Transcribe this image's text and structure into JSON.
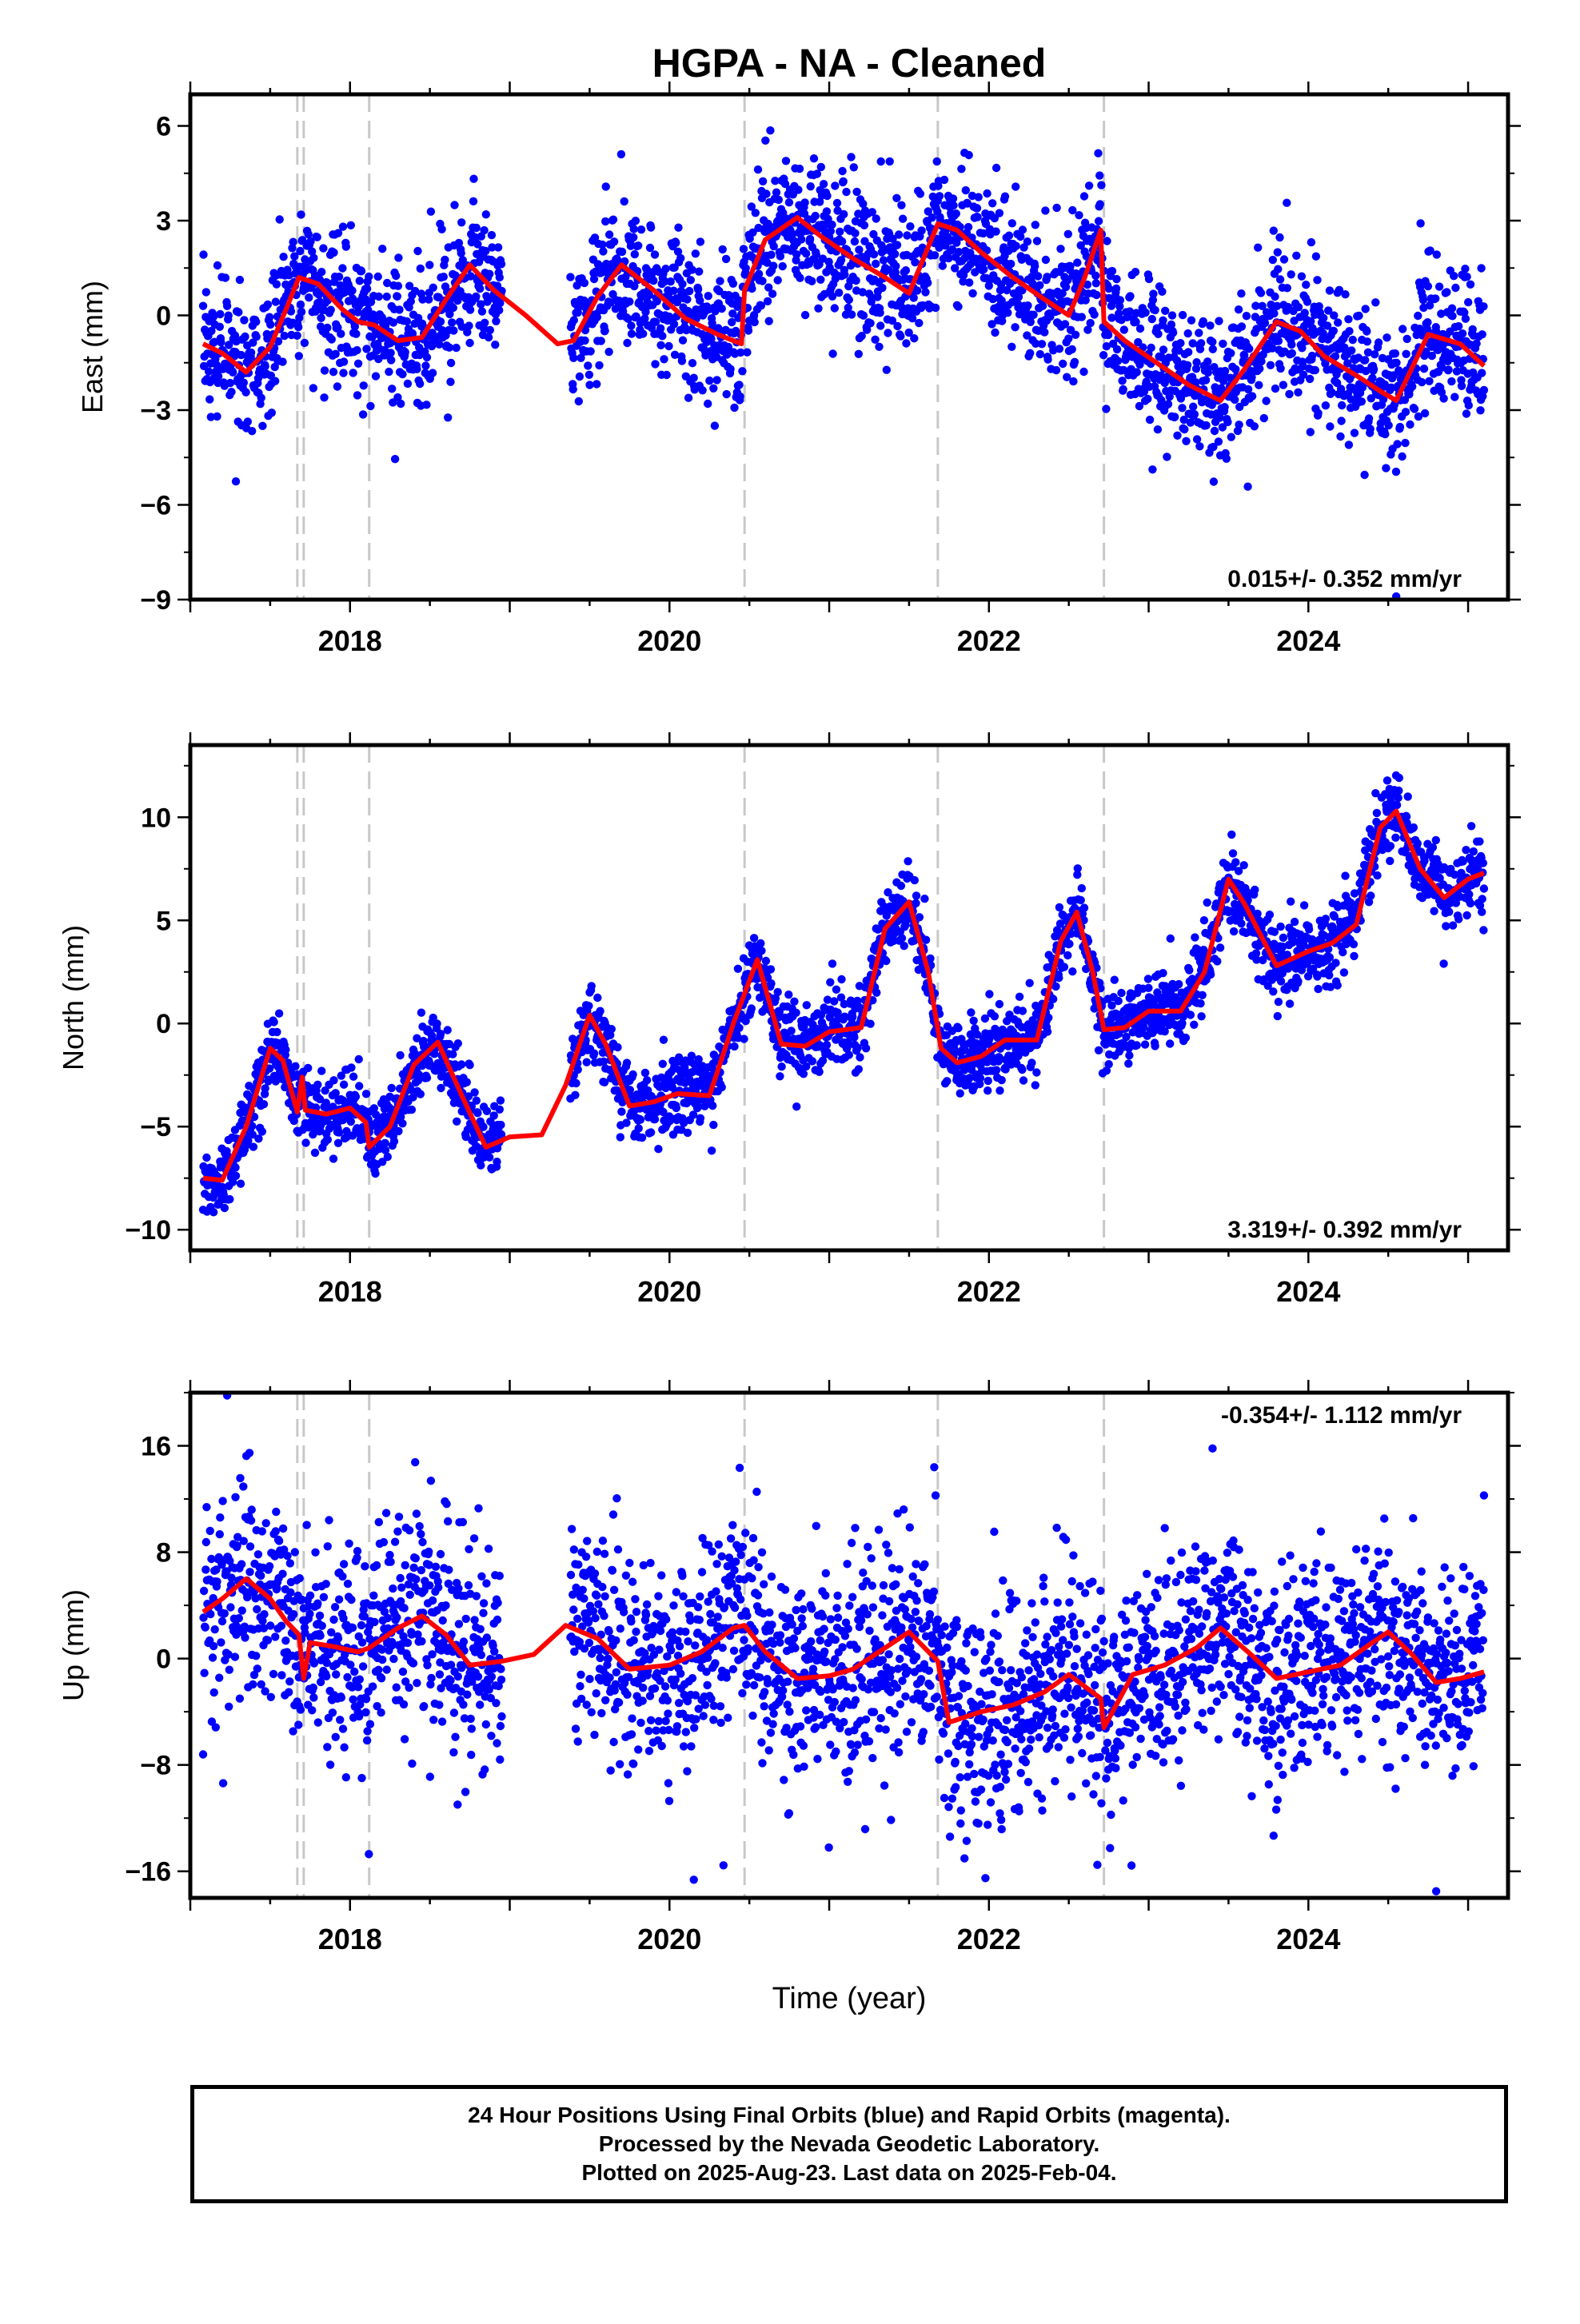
{
  "title": "HGPA  - NA - Cleaned",
  "x_axis_label": "Time (year)",
  "footer": {
    "line1": "24 Hour Positions Using Final Orbits (blue) and Rapid Orbits (magenta).",
    "line2": "Processed by the Nevada Geodetic Laboratory.",
    "line3": "Plotted on 2025-Aug-23. Last data on 2025-Feb-04."
  },
  "colors": {
    "points": "#0000ff",
    "model": "#ff0000",
    "offsets": "#c8c8c8",
    "frame": "#000000"
  },
  "chart_data": [
    {
      "type": "scatter",
      "panel": "east",
      "ylabel": "East (mm)",
      "xlim": [
        2017.0,
        2025.25
      ],
      "ylim": [
        -9,
        7
      ],
      "yticks": [
        6,
        3,
        0,
        -3,
        -6,
        -9
      ],
      "ytick_labels": [
        "6",
        "3",
        "0",
        "−3",
        "−6",
        "−9"
      ],
      "xticks": [
        2018,
        2020,
        2022,
        2024
      ],
      "xtick_labels": [
        "2018",
        "2020",
        "2022",
        "2024"
      ],
      "rate_label": "0.015+/- 0.352 mm/yr",
      "offset_lines": [
        2017.67,
        2017.71,
        2018.12,
        2020.47,
        2021.68,
        2022.72
      ],
      "model_x": [
        2017.08,
        2017.2,
        2017.35,
        2017.5,
        2017.6,
        2017.68,
        2017.8,
        2017.95,
        2018.05,
        2018.15,
        2018.3,
        2018.45,
        2018.6,
        2018.75,
        2018.9,
        2019.1,
        2019.3,
        2019.4,
        2019.55,
        2019.7,
        2019.9,
        2020.1,
        2020.3,
        2020.45,
        2020.47,
        2020.6,
        2020.8,
        2020.95,
        2021.15,
        2021.35,
        2021.5,
        2021.68,
        2021.8,
        2021.95,
        2022.15,
        2022.35,
        2022.5,
        2022.6,
        2022.7,
        2022.72,
        2022.85,
        2023.05,
        2023.25,
        2023.45,
        2023.6,
        2023.8,
        2023.95,
        2024.1,
        2024.3,
        2024.45,
        2024.55,
        2024.75,
        2024.95,
        2025.1
      ],
      "model_y": [
        -0.9,
        -1.2,
        -1.8,
        -1.0,
        0.2,
        1.2,
        1.0,
        0.2,
        -0.2,
        -0.3,
        -0.8,
        -0.7,
        0.5,
        1.6,
        0.8,
        0.0,
        -0.9,
        -0.8,
        0.6,
        1.6,
        0.8,
        -0.1,
        -0.6,
        -0.9,
        0.8,
        2.4,
        3.1,
        2.5,
        1.8,
        1.2,
        0.7,
        2.9,
        2.7,
        2.0,
        1.2,
        0.5,
        0.0,
        1.2,
        2.7,
        -0.2,
        -0.8,
        -1.5,
        -2.2,
        -2.7,
        -1.7,
        -0.2,
        -0.5,
        -1.3,
        -1.9,
        -2.4,
        -2.7,
        -0.6,
        -0.9,
        -1.6
      ],
      "series": [
        {
          "name": "Final Orbits",
          "segments": [
            [
              2017.08,
              2018.95
            ],
            [
              2019.38,
              2025.1
            ]
          ],
          "noise": 1.1,
          "outlier_rate": 0.01
        }
      ],
      "extra_points": [
        [
          2024.55,
          -8.9
        ]
      ]
    },
    {
      "type": "scatter",
      "panel": "north",
      "ylabel": "North (mm)",
      "xlim": [
        2017.0,
        2025.25
      ],
      "ylim": [
        -11,
        13.5
      ],
      "yticks": [
        10,
        5,
        0,
        -5,
        -10
      ],
      "ytick_labels": [
        "10",
        "5",
        "0",
        "−5",
        "−10"
      ],
      "xticks": [
        2018,
        2020,
        2022,
        2024
      ],
      "xtick_labels": [
        "2018",
        "2020",
        "2022",
        "2024"
      ],
      "rate_label": "3.319+/- 0.392 mm/yr",
      "offset_lines": [
        2017.67,
        2017.71,
        2018.12,
        2020.47,
        2021.68,
        2022.72
      ],
      "model_x": [
        2017.08,
        2017.2,
        2017.35,
        2017.5,
        2017.58,
        2017.67,
        2017.7,
        2017.72,
        2017.85,
        2018.0,
        2018.1,
        2018.12,
        2018.25,
        2018.4,
        2018.55,
        2018.7,
        2018.85,
        2019.0,
        2019.2,
        2019.35,
        2019.5,
        2019.6,
        2019.75,
        2019.9,
        2020.05,
        2020.25,
        2020.4,
        2020.55,
        2020.7,
        2020.85,
        2021.0,
        2021.2,
        2021.35,
        2021.5,
        2021.62,
        2021.7,
        2021.8,
        2021.95,
        2022.1,
        2022.3,
        2022.45,
        2022.55,
        2022.65,
        2022.72,
        2022.85,
        2023.0,
        2023.2,
        2023.35,
        2023.5,
        2023.6,
        2023.8,
        2024.0,
        2024.15,
        2024.3,
        2024.45,
        2024.55,
        2024.7,
        2024.85,
        2025.0,
        2025.1
      ],
      "model_y": [
        -7.5,
        -7.6,
        -5.0,
        -1.2,
        -1.8,
        -4.3,
        -2.6,
        -4.2,
        -4.4,
        -4.1,
        -4.8,
        -6.0,
        -5.0,
        -2.0,
        -0.9,
        -3.5,
        -6.0,
        -5.5,
        -5.4,
        -3.0,
        0.4,
        -1.0,
        -4.0,
        -3.8,
        -3.4,
        -3.5,
        0.0,
        3.1,
        -1.0,
        -1.1,
        -0.4,
        -0.2,
        4.6,
        5.9,
        2.5,
        -1.2,
        -1.9,
        -1.6,
        -0.8,
        -0.8,
        4.0,
        5.4,
        2.5,
        -0.3,
        -0.2,
        0.6,
        0.6,
        2.5,
        7.0,
        5.8,
        2.8,
        3.5,
        3.9,
        4.8,
        9.5,
        10.3,
        7.5,
        6.1,
        7.0,
        7.3
      ],
      "series": [
        {
          "name": "Final Orbits",
          "segments": [
            [
              2017.08,
              2018.95
            ],
            [
              2019.38,
              2025.1
            ]
          ],
          "noise": 0.9,
          "outlier_rate": 0.01
        }
      ],
      "extra_points": []
    },
    {
      "type": "scatter",
      "panel": "up",
      "ylabel": "Up (mm)",
      "xlim": [
        2017.0,
        2025.25
      ],
      "ylim": [
        -18,
        20
      ],
      "yticks": [
        16,
        8,
        0,
        -8,
        -16
      ],
      "ytick_labels": [
        "16",
        "8",
        "0",
        "−8",
        "−16"
      ],
      "xticks": [
        2018,
        2020,
        2022,
        2024
      ],
      "xtick_labels": [
        "2018",
        "2020",
        "2022",
        "2024"
      ],
      "rate_label": "-0.354+/- 1.112 mm/yr",
      "offset_lines": [
        2017.67,
        2017.71,
        2018.12,
        2020.47,
        2021.68,
        2022.72
      ],
      "model_x": [
        2017.08,
        2017.2,
        2017.35,
        2017.5,
        2017.6,
        2017.68,
        2017.71,
        2017.75,
        2017.9,
        2018.05,
        2018.12,
        2018.3,
        2018.45,
        2018.6,
        2018.75,
        2018.95,
        2019.15,
        2019.35,
        2019.55,
        2019.75,
        2020.0,
        2020.2,
        2020.4,
        2020.47,
        2020.6,
        2020.8,
        2021.0,
        2021.15,
        2021.35,
        2021.5,
        2021.68,
        2021.75,
        2021.95,
        2022.15,
        2022.35,
        2022.5,
        2022.7,
        2022.72,
        2022.9,
        2023.1,
        2023.3,
        2023.45,
        2023.65,
        2023.8,
        2024.0,
        2024.2,
        2024.4,
        2024.5,
        2024.65,
        2024.8,
        2024.95,
        2025.1
      ],
      "model_y": [
        3.5,
        4.5,
        6.0,
        4.5,
        2.8,
        1.8,
        -1.5,
        1.2,
        0.9,
        0.5,
        0.8,
        2.3,
        3.2,
        1.8,
        -0.5,
        -0.2,
        0.3,
        2.5,
        1.5,
        -0.8,
        -0.5,
        0.5,
        2.3,
        2.5,
        0.5,
        -1.5,
        -1.3,
        -0.8,
        0.8,
        2.0,
        -0.2,
        -4.8,
        -4.0,
        -3.5,
        -2.5,
        -1.2,
        -3.0,
        -5.2,
        -1.2,
        -0.5,
        0.8,
        2.3,
        0.2,
        -1.5,
        -1.0,
        -0.5,
        1.2,
        2.0,
        0.3,
        -1.8,
        -1.5,
        -1.0
      ],
      "series": [
        {
          "name": "Final Orbits",
          "segments": [
            [
              2017.08,
              2018.95
            ],
            [
              2019.38,
              2025.1
            ]
          ],
          "noise": 3.8,
          "outlier_rate": 0.02
        }
      ],
      "extra_points": [
        [
          2023.4,
          15.8
        ],
        [
          2024.8,
          -17.5
        ]
      ]
    }
  ]
}
